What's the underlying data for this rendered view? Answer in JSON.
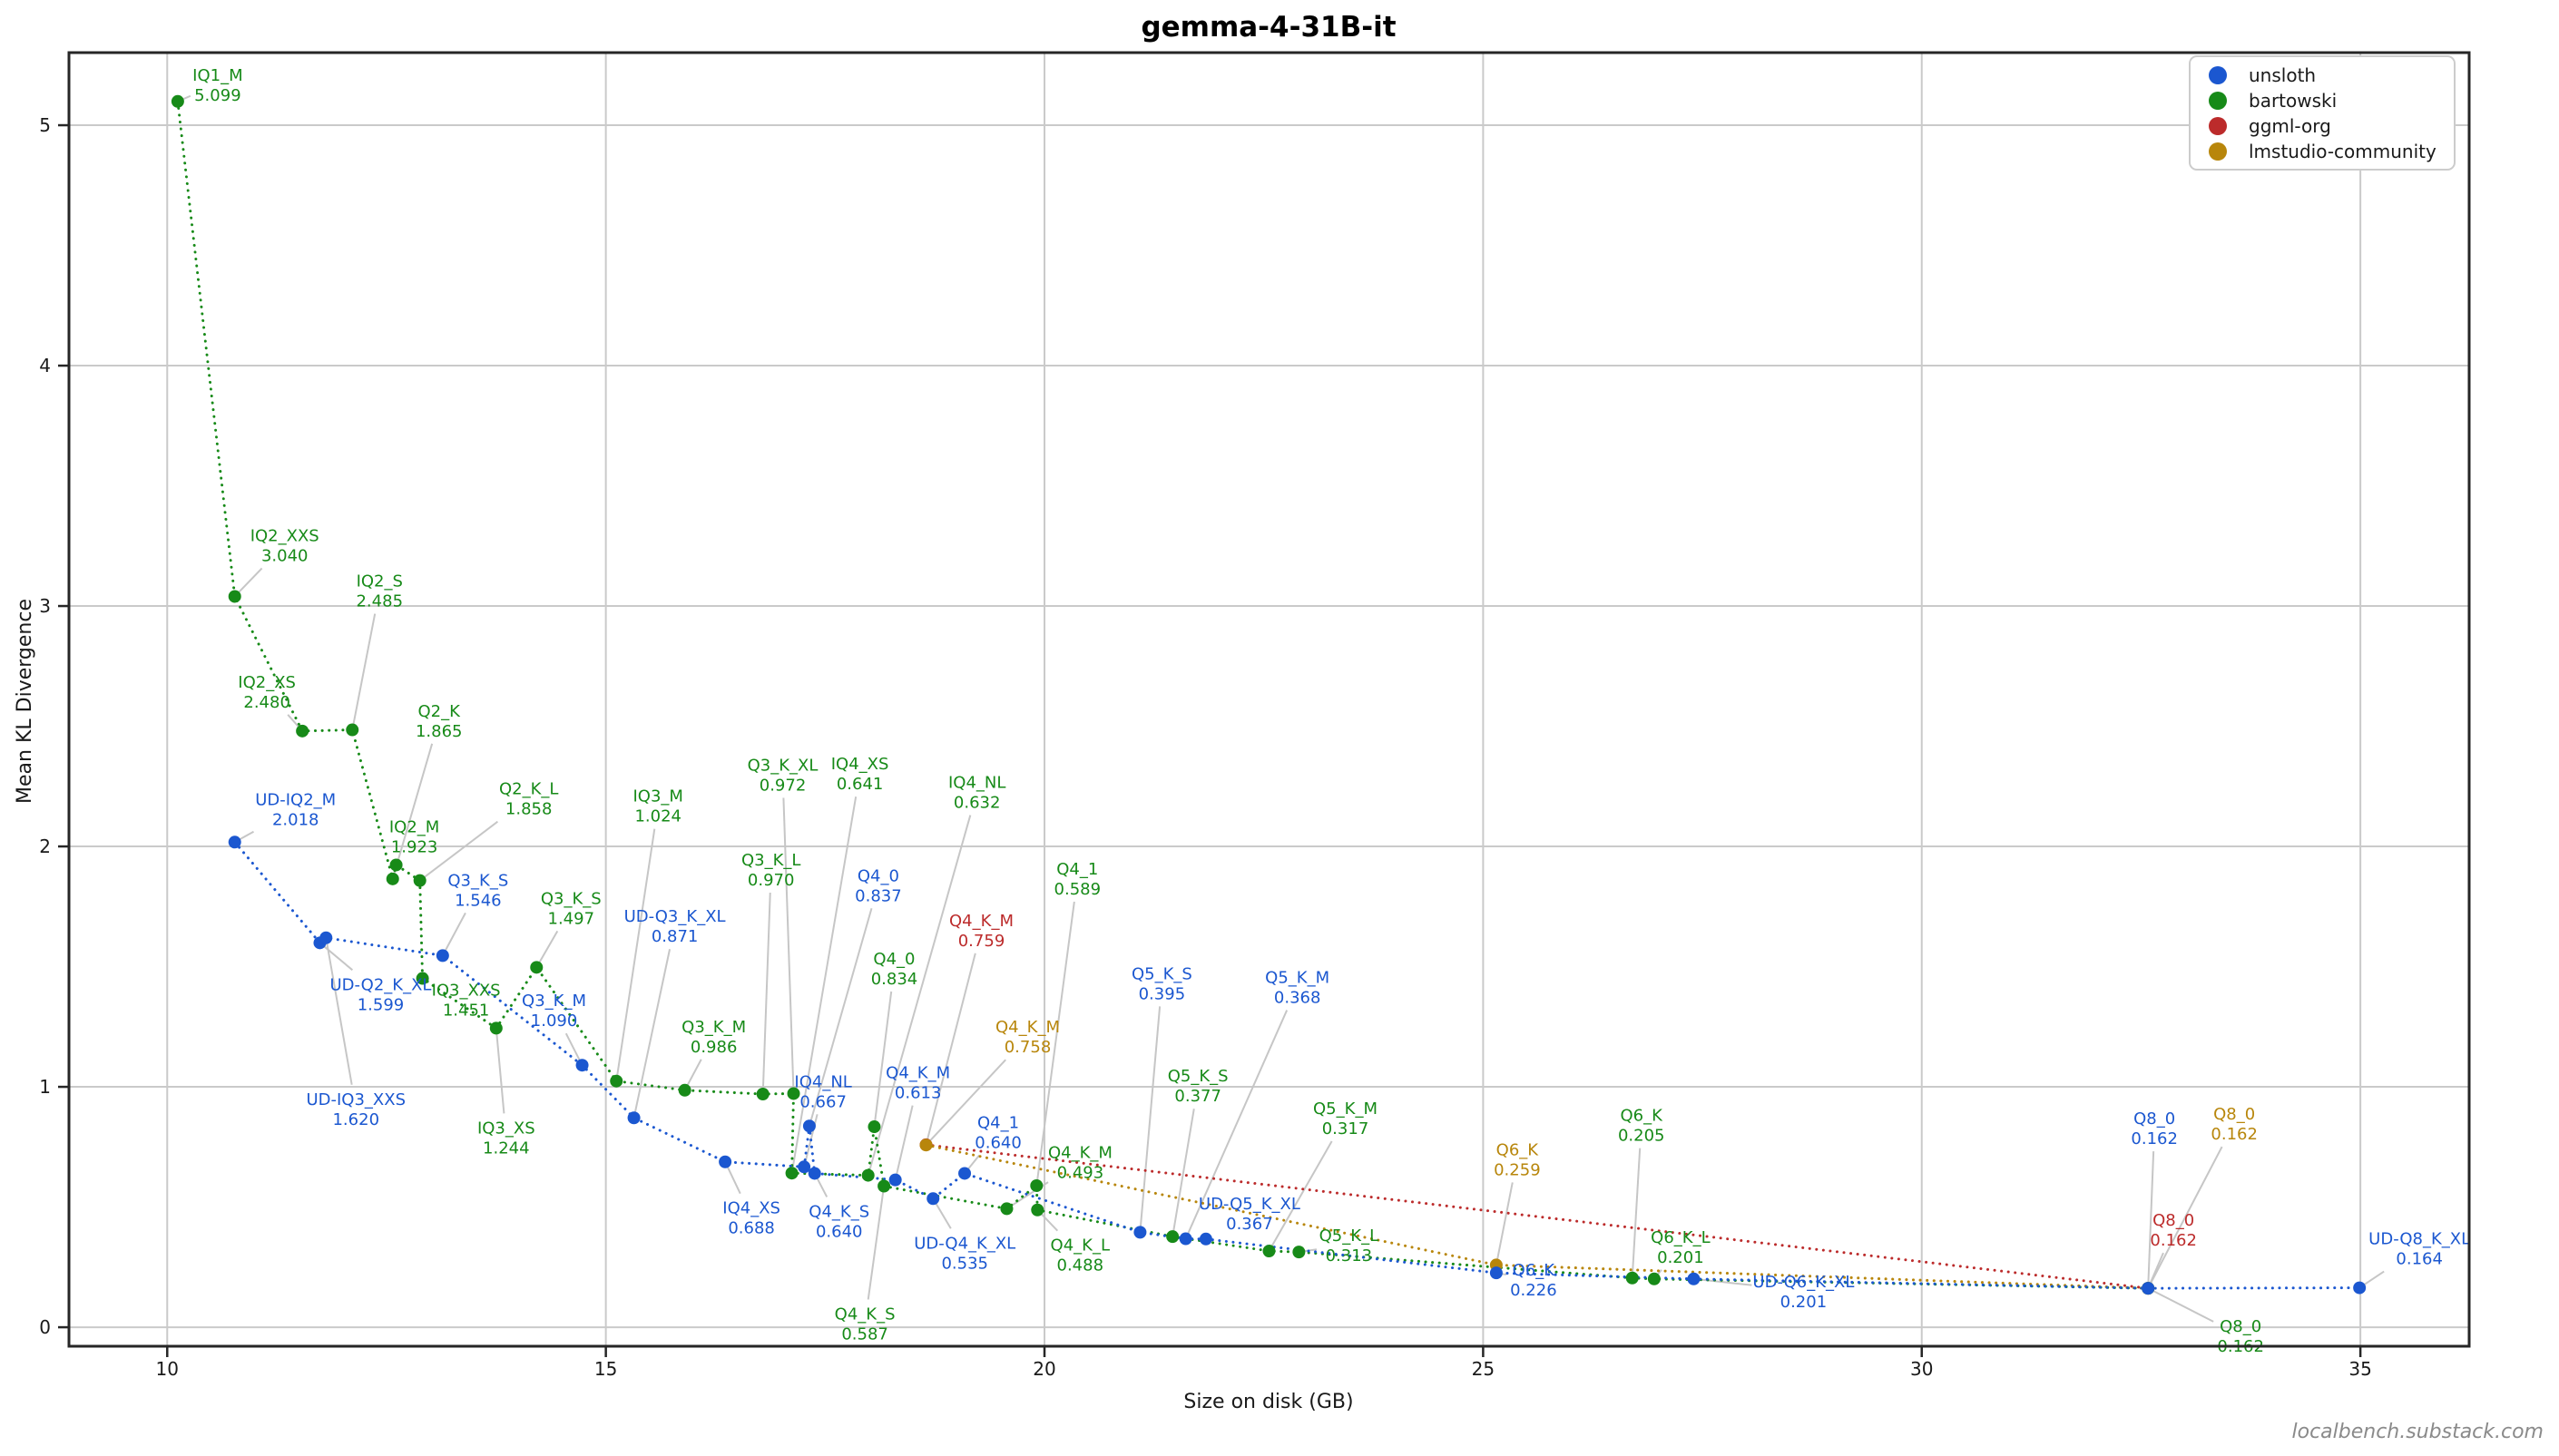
{
  "title": "gemma-4-31B-it",
  "watermark": "localbench.substack.com",
  "colors": {
    "unsloth": "#1b57d0",
    "bartowski": "#178a18",
    "ggml_org": "#bc2b2b",
    "lmstudio_community": "#b8860b",
    "grid": "#cacaca",
    "leader": "#c6c6c6",
    "spine": "#262626",
    "tick_text": "#1a1a1a",
    "watermark_text": "#8a8a8a"
  },
  "chart_data": {
    "type": "scatter",
    "title": "gemma-4-31B-it",
    "xlabel": "Size on disk (GB)",
    "ylabel": "Mean KL Divergence",
    "xlim": [
      8.88,
      36.24
    ],
    "ylim": [
      -0.079,
      5.302
    ],
    "xticks": [
      10,
      15,
      20,
      25,
      30,
      35
    ],
    "yticks": [
      0,
      1,
      2,
      3,
      4,
      5
    ],
    "grid": true,
    "legend_position": "upper right",
    "legend": [
      "unsloth",
      "bartowski",
      "ggml-org",
      "lmstudio-community"
    ],
    "series": [
      {
        "name": "unsloth",
        "color": "#1b57d0",
        "points": [
          {
            "label": "UD-IQ2_M",
            "gb": 10.77,
            "kl": 2.018,
            "dx": 67,
            "dy": -37
          },
          {
            "label": "UD-Q2_K_XL",
            "gb": 11.74,
            "kl": 1.599,
            "dx": 67,
            "dy": 56
          },
          {
            "label": "UD-IQ3_XXS",
            "gb": 11.81,
            "kl": 1.62,
            "dx": 33,
            "dy": 188
          },
          {
            "label": "Q3_K_S",
            "gb": 13.14,
            "kl": 1.546,
            "dx": 39,
            "dy": -73
          },
          {
            "label": "Q3_K_M",
            "gb": 14.73,
            "kl": 1.09,
            "dx": -31,
            "dy": -61
          },
          {
            "label": "UD-Q3_K_XL",
            "gb": 15.32,
            "kl": 0.871,
            "dx": 45,
            "dy": -212
          },
          {
            "label": "IQ4_XS",
            "gb": 16.36,
            "kl": 0.688,
            "dx": 29,
            "dy": 61
          },
          {
            "label": "IQ4_NL",
            "gb": 17.26,
            "kl": 0.667,
            "dx": 21,
            "dy": -84
          },
          {
            "label": "Q4_0",
            "gb": 17.32,
            "kl": 0.837,
            "dx": 76,
            "dy": -266
          },
          {
            "label": "Q4_K_S",
            "gb": 17.38,
            "kl": 0.64,
            "dx": 27,
            "dy": 52
          },
          {
            "label": "Q4_K_M",
            "gb": 18.3,
            "kl": 0.613,
            "dx": 25,
            "dy": -108
          },
          {
            "label": "UD-Q4_K_XL",
            "gb": 18.73,
            "kl": 0.535,
            "dx": 35,
            "dy": 59
          },
          {
            "label": "Q4_1",
            "gb": 19.09,
            "kl": 0.64,
            "dx": 37,
            "dy": -46
          },
          {
            "label": "Q5_K_S",
            "gb": 21.09,
            "kl": 0.395,
            "dx": 24,
            "dy": -275
          },
          {
            "label": "Q5_K_M",
            "gb": 21.61,
            "kl": 0.368,
            "dx": 123,
            "dy": -278
          },
          {
            "label": "UD-Q5_K_XL",
            "gb": 21.84,
            "kl": 0.367,
            "dx": 48,
            "dy": -29
          },
          {
            "label": "Q6_K",
            "gb": 25.15,
            "kl": 0.226,
            "dx": 41,
            "dy": 7
          },
          {
            "label": "UD-Q6_K_XL",
            "gb": 27.4,
            "kl": 0.201,
            "dx": 121,
            "dy": 13
          },
          {
            "label": "Q8_0",
            "gb": 32.58,
            "kl": 0.162,
            "dx": 7,
            "dy": -177
          },
          {
            "label": "UD-Q8_K_XL",
            "gb": 34.99,
            "kl": 0.164,
            "dx": 66,
            "dy": -44
          }
        ]
      },
      {
        "name": "bartowski",
        "color": "#178a18",
        "points": [
          {
            "label": "IQ1_M",
            "gb": 10.12,
            "kl": 5.099,
            "dx": 44,
            "dy": -19
          },
          {
            "label": "IQ2_XXS",
            "gb": 10.77,
            "kl": 3.04,
            "dx": 55,
            "dy": -57
          },
          {
            "label": "IQ2_XS",
            "gb": 11.54,
            "kl": 2.48,
            "dx": -39,
            "dy": -44
          },
          {
            "label": "IQ2_S",
            "gb": 12.11,
            "kl": 2.485,
            "dx": 30,
            "dy": -154
          },
          {
            "label": "Q2_K",
            "gb": 12.57,
            "kl": 1.865,
            "dx": 51,
            "dy": -175
          },
          {
            "label": "IQ2_M",
            "gb": 12.61,
            "kl": 1.923,
            "dx": 20,
            "dy": -32
          },
          {
            "label": "Q2_K_L",
            "gb": 12.88,
            "kl": 1.858,
            "dx": 120,
            "dy": -91
          },
          {
            "label": "IQ3_XXS",
            "gb": 12.91,
            "kl": 1.451,
            "dx": 48,
            "dy": 23
          },
          {
            "label": "IQ3_XS",
            "gb": 13.75,
            "kl": 1.244,
            "dx": 11,
            "dy": 120
          },
          {
            "label": "Q3_K_S",
            "gb": 14.21,
            "kl": 1.497,
            "dx": 38,
            "dy": -66
          },
          {
            "label": "IQ3_M",
            "gb": 15.12,
            "kl": 1.024,
            "dx": 46,
            "dy": -304
          },
          {
            "label": "Q3_K_M",
            "gb": 15.9,
            "kl": 0.986,
            "dx": 32,
            "dy": -60
          },
          {
            "label": "Q3_K_L",
            "gb": 16.79,
            "kl": 0.97,
            "dx": 9,
            "dy": -248
          },
          {
            "label": "Q3_K_XL",
            "gb": 17.14,
            "kl": 0.972,
            "dx": -12,
            "dy": -352
          },
          {
            "label": "IQ4_XS",
            "gb": 17.12,
            "kl": 0.641,
            "dx": 75,
            "dy": -441
          },
          {
            "label": "IQ4_NL",
            "gb": 17.99,
            "kl": 0.632,
            "dx": 120,
            "dy": -423
          },
          {
            "label": "Q4_0",
            "gb": 18.06,
            "kl": 0.834,
            "dx": 22,
            "dy": -175
          },
          {
            "label": "Q4_K_S",
            "gb": 18.17,
            "kl": 0.587,
            "dx": -21,
            "dy": 151
          },
          {
            "label": "Q4_K_M",
            "gb": 19.57,
            "kl": 0.493,
            "dx": 81,
            "dy": -52
          },
          {
            "label": "Q4_1",
            "gb": 19.91,
            "kl": 0.589,
            "dx": 45,
            "dy": -339
          },
          {
            "label": "Q4_K_L",
            "gb": 19.92,
            "kl": 0.488,
            "dx": 47,
            "dy": 49
          },
          {
            "label": "Q5_K_S",
            "gb": 21.46,
            "kl": 0.377,
            "dx": 28,
            "dy": -167
          },
          {
            "label": "Q5_K_M",
            "gb": 22.56,
            "kl": 0.317,
            "dx": 84,
            "dy": -147
          },
          {
            "label": "Q5_K_L",
            "gb": 22.9,
            "kl": 0.313,
            "dx": 55,
            "dy": -8
          },
          {
            "label": "Q6_K",
            "gb": 26.7,
            "kl": 0.205,
            "dx": 10,
            "dy": -169
          },
          {
            "label": "Q6_K_L",
            "gb": 26.95,
            "kl": 0.201,
            "dx": 29,
            "dy": -36
          },
          {
            "label": "Q8_0",
            "gb": 32.58,
            "kl": 0.162,
            "dx": 102,
            "dy": 52
          }
        ]
      },
      {
        "name": "ggml-org",
        "color": "#bc2b2b",
        "points": [
          {
            "label": "Q4_K_M",
            "gb": 18.65,
            "kl": 0.759,
            "dx": 61,
            "dy": -237
          },
          {
            "label": "Q8_0",
            "gb": 32.58,
            "kl": 0.162,
            "dx": 28,
            "dy": -65
          }
        ]
      },
      {
        "name": "lmstudio-community",
        "color": "#b8860b",
        "points": [
          {
            "label": "Q4_K_M",
            "gb": 18.65,
            "kl": 0.758,
            "dx": 112,
            "dy": -120
          },
          {
            "label": "Q6_K",
            "gb": 25.15,
            "kl": 0.259,
            "dx": 23,
            "dy": -117
          },
          {
            "label": "Q8_0",
            "gb": 32.58,
            "kl": 0.162,
            "dx": 95,
            "dy": -182
          }
        ]
      }
    ]
  }
}
